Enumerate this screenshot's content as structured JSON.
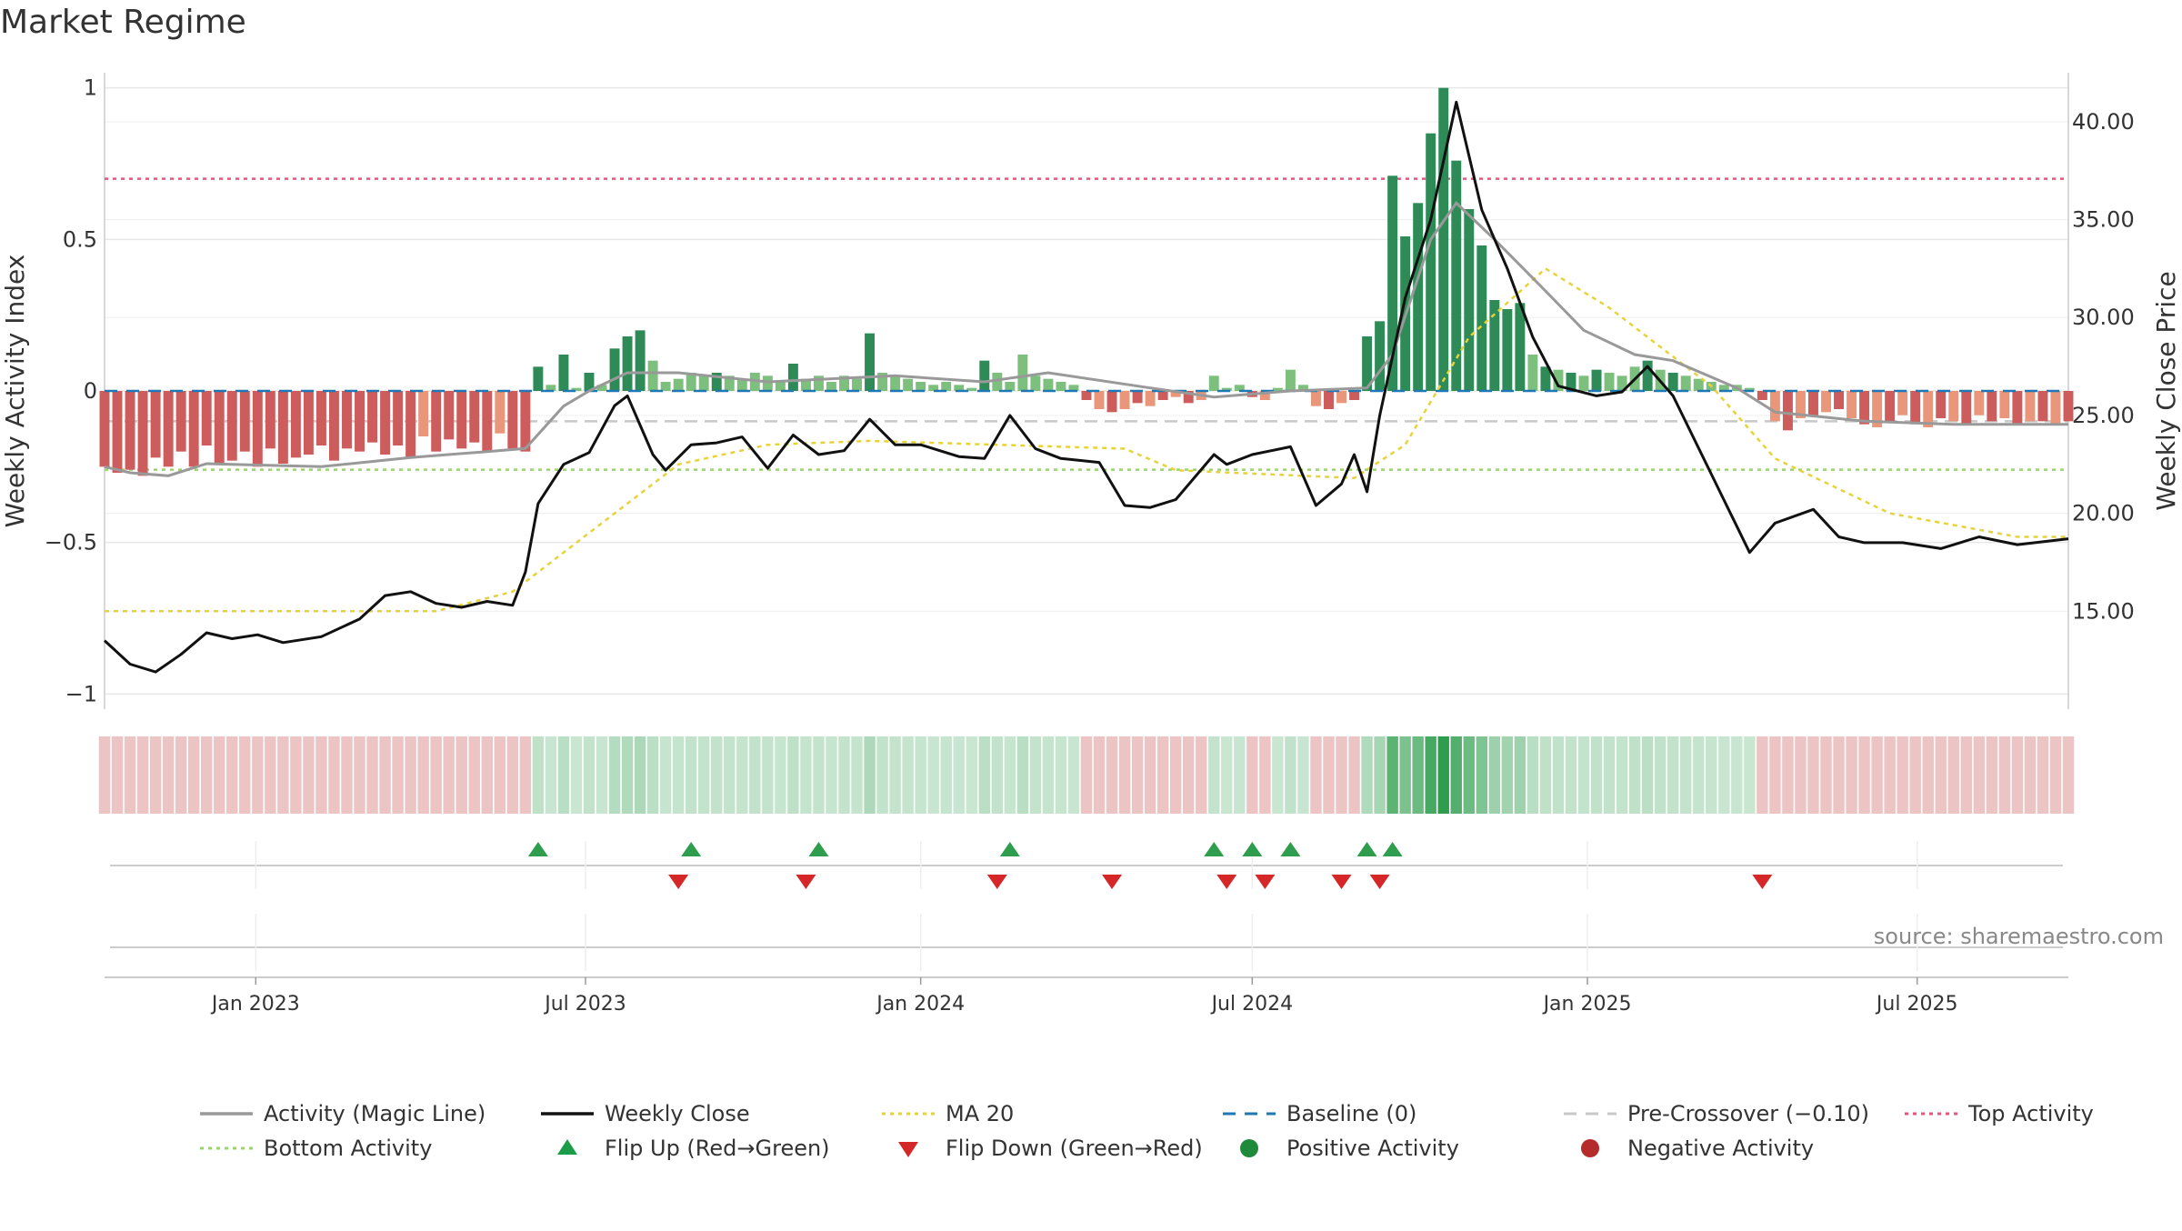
{
  "chart_data": {
    "type": "bar",
    "title": "Market Regime",
    "source": "source: sharemaestro.com",
    "y_left": {
      "label": "Weekly Activity Index",
      "range": [
        -1.05,
        1.05
      ],
      "ticks": [
        1,
        0.5,
        0,
        -0.5,
        -1
      ],
      "tick_labels": [
        "1",
        "0.5",
        "0",
        "−0.5",
        "−1"
      ]
    },
    "y_right": {
      "label": "Weekly Close Price",
      "range": [
        10.0,
        42.5
      ],
      "ticks": [
        40,
        35,
        30,
        25,
        20,
        15
      ],
      "tick_labels": [
        "40.00",
        "35.00",
        "30.00",
        "25.00",
        "20.00",
        "15.00"
      ]
    },
    "x_axis": {
      "start": "2022-10-10",
      "end": "2025-09-22",
      "ticks": [
        "2023-01-01",
        "2023-07-01",
        "2024-01-01",
        "2024-07-01",
        "2025-01-01",
        "2025-07-01"
      ],
      "tick_labels": [
        "Jan 2023",
        "Jul 2023",
        "Jan 2024",
        "Jul 2024",
        "Jan 2025",
        "Jul 2025"
      ]
    },
    "reference_lines": {
      "top_activity": 0.7,
      "bottom_activity": -0.26,
      "baseline": 0,
      "pre_crossover": -0.1
    },
    "weekly_close_anchors": [
      [
        "2022-10-10",
        13.5
      ],
      [
        "2022-10-24",
        12.3
      ],
      [
        "2022-11-07",
        11.9
      ],
      [
        "2022-11-21",
        12.8
      ],
      [
        "2022-12-05",
        13.9
      ],
      [
        "2022-12-19",
        13.6
      ],
      [
        "2023-01-02",
        13.8
      ],
      [
        "2023-01-16",
        13.4
      ],
      [
        "2023-02-06",
        13.7
      ],
      [
        "2023-02-27",
        14.6
      ],
      [
        "2023-03-13",
        15.8
      ],
      [
        "2023-03-27",
        16.0
      ],
      [
        "2023-04-10",
        15.4
      ],
      [
        "2023-04-24",
        15.2
      ],
      [
        "2023-05-08",
        15.5
      ],
      [
        "2023-05-22",
        15.3
      ],
      [
        "2023-05-29",
        17.0
      ],
      [
        "2023-06-05",
        20.5
      ],
      [
        "2023-06-19",
        22.5
      ],
      [
        "2023-07-03",
        23.1
      ],
      [
        "2023-07-17",
        25.5
      ],
      [
        "2023-07-24",
        26.0
      ],
      [
        "2023-08-07",
        23.0
      ],
      [
        "2023-08-14",
        22.2
      ],
      [
        "2023-08-28",
        23.5
      ],
      [
        "2023-09-11",
        23.6
      ],
      [
        "2023-09-25",
        23.9
      ],
      [
        "2023-10-09",
        22.3
      ],
      [
        "2023-10-23",
        24.0
      ],
      [
        "2023-11-06",
        23.0
      ],
      [
        "2023-11-20",
        23.2
      ],
      [
        "2023-12-04",
        24.8
      ],
      [
        "2023-12-18",
        23.5
      ],
      [
        "2024-01-01",
        23.5
      ],
      [
        "2024-01-22",
        22.9
      ],
      [
        "2024-02-05",
        22.8
      ],
      [
        "2024-02-19",
        25.0
      ],
      [
        "2024-03-04",
        23.3
      ],
      [
        "2024-03-18",
        22.8
      ],
      [
        "2024-04-08",
        22.6
      ],
      [
        "2024-04-22",
        20.4
      ],
      [
        "2024-05-06",
        20.3
      ],
      [
        "2024-05-20",
        20.7
      ],
      [
        "2024-06-10",
        23.0
      ],
      [
        "2024-06-17",
        22.5
      ],
      [
        "2024-07-01",
        23.0
      ],
      [
        "2024-07-22",
        23.4
      ],
      [
        "2024-08-05",
        20.4
      ],
      [
        "2024-08-19",
        21.5
      ],
      [
        "2024-08-26",
        23.0
      ],
      [
        "2024-09-02",
        21.1
      ],
      [
        "2024-09-09",
        25.0
      ],
      [
        "2024-09-23",
        31.0
      ],
      [
        "2024-10-07",
        35.0
      ],
      [
        "2024-10-21",
        41.0
      ],
      [
        "2024-11-04",
        35.5
      ],
      [
        "2024-11-18",
        32.5
      ],
      [
        "2024-12-02",
        29.0
      ],
      [
        "2024-12-16",
        26.5
      ],
      [
        "2025-01-06",
        26.0
      ],
      [
        "2025-01-20",
        26.2
      ],
      [
        "2025-02-03",
        27.5
      ],
      [
        "2025-02-17",
        26.0
      ],
      [
        "2025-03-10",
        22.0
      ],
      [
        "2025-03-31",
        18.0
      ],
      [
        "2025-04-14",
        19.5
      ],
      [
        "2025-05-05",
        20.2
      ],
      [
        "2025-05-19",
        18.8
      ],
      [
        "2025-06-02",
        18.5
      ],
      [
        "2025-06-23",
        18.5
      ],
      [
        "2025-07-14",
        18.2
      ],
      [
        "2025-08-04",
        18.8
      ],
      [
        "2025-08-25",
        18.4
      ],
      [
        "2025-09-22",
        18.7
      ]
    ],
    "activity_anchors": [
      [
        "2022-10-10",
        -0.25
      ],
      [
        "2022-10-24",
        -0.27
      ],
      [
        "2022-11-14",
        -0.28
      ],
      [
        "2022-12-05",
        -0.24
      ],
      [
        "2023-02-06",
        -0.25
      ],
      [
        "2023-03-27",
        -0.22
      ],
      [
        "2023-05-08",
        -0.2
      ],
      [
        "2023-05-29",
        -0.19
      ],
      [
        "2023-06-19",
        -0.05
      ],
      [
        "2023-07-03",
        0.0
      ],
      [
        "2023-07-24",
        0.06
      ],
      [
        "2023-08-21",
        0.06
      ],
      [
        "2023-10-09",
        0.03
      ],
      [
        "2023-12-18",
        0.05
      ],
      [
        "2024-02-05",
        0.03
      ],
      [
        "2024-03-11",
        0.06
      ],
      [
        "2024-05-06",
        0.01
      ],
      [
        "2024-06-10",
        -0.02
      ],
      [
        "2024-07-22",
        0.0
      ],
      [
        "2024-09-02",
        0.01
      ],
      [
        "2024-09-16",
        0.12
      ],
      [
        "2024-10-07",
        0.5
      ],
      [
        "2024-10-21",
        0.62
      ],
      [
        "2024-11-11",
        0.5
      ],
      [
        "2024-12-09",
        0.33
      ],
      [
        "2024-12-30",
        0.2
      ],
      [
        "2025-01-27",
        0.12
      ],
      [
        "2025-02-17",
        0.1
      ],
      [
        "2025-03-24",
        0.01
      ],
      [
        "2025-04-14",
        -0.07
      ],
      [
        "2025-06-02",
        -0.1
      ],
      [
        "2025-07-21",
        -0.11
      ],
      [
        "2025-09-22",
        -0.11
      ]
    ],
    "ma20_anchors": [
      [
        "2022-10-10",
        15.0
      ],
      [
        "2023-04-10",
        15.0
      ],
      [
        "2023-05-22",
        16.0
      ],
      [
        "2023-07-10",
        19.5
      ],
      [
        "2023-08-21",
        22.5
      ],
      [
        "2023-10-09",
        23.5
      ],
      [
        "2023-12-04",
        23.7
      ],
      [
        "2024-04-22",
        23.3
      ],
      [
        "2024-05-20",
        22.2
      ],
      [
        "2024-07-08",
        22.0
      ],
      [
        "2024-08-26",
        21.8
      ],
      [
        "2024-09-23",
        23.5
      ],
      [
        "2024-10-28",
        29.0
      ],
      [
        "2024-12-09",
        32.5
      ],
      [
        "2025-01-13",
        30.5
      ],
      [
        "2025-03-10",
        26.5
      ],
      [
        "2025-04-14",
        22.8
      ],
      [
        "2025-06-16",
        20.0
      ],
      [
        "2025-08-25",
        18.8
      ],
      [
        "2025-09-22",
        18.8
      ]
    ],
    "weekly_activity_bars": {
      "note": "weekly bars: value by week",
      "segments": [
        [
          "2022-10-10",
          "2023-05-29",
          "neg",
          [
            -0.25,
            -0.27,
            -0.26,
            -0.28,
            -0.22,
            -0.25,
            -0.2,
            -0.25,
            -0.18,
            -0.24,
            -0.23,
            -0.2,
            -0.25,
            -0.19,
            -0.24,
            -0.22,
            -0.21,
            -0.18,
            -0.23,
            -0.19,
            -0.2,
            -0.17,
            -0.21,
            -0.18,
            -0.22,
            -0.15,
            -0.2,
            -0.16,
            -0.19,
            -0.17,
            -0.2,
            -0.14,
            -0.19,
            -0.2
          ]
        ],
        [
          "2023-06-05",
          "2023-08-14",
          "pos",
          [
            0.08,
            0.02,
            0.12,
            0.01,
            0.06,
            0.02,
            0.14,
            0.18,
            0.2,
            0.1,
            0.03
          ]
        ],
        [
          "2023-08-21",
          "2023-09-04",
          "pos",
          [
            0.04,
            0.06,
            0.05
          ]
        ],
        [
          "2023-09-11",
          "2024-01-29",
          "pos",
          [
            0.06,
            0.05,
            0.04,
            0.06,
            0.05,
            0.03,
            0.09,
            0.04,
            0.05,
            0.03,
            0.05,
            0.04,
            0.19,
            0.06,
            0.05,
            0.04,
            0.03,
            0.02,
            0.03,
            0.02,
            0.01
          ]
        ],
        [
          "2024-02-05",
          "2024-03-25",
          "pos",
          [
            0.1,
            0.06,
            0.03,
            0.12,
            0.05,
            0.04,
            0.03,
            0.02
          ]
        ],
        [
          "2024-04-01",
          "2024-06-03",
          "neg",
          [
            -0.03,
            -0.06,
            -0.07,
            -0.06,
            -0.04,
            -0.05,
            -0.03,
            -0.02,
            -0.04,
            -0.03
          ]
        ],
        [
          "2024-06-10",
          "2024-06-24",
          "pos",
          [
            0.05,
            0.01,
            0.02
          ]
        ],
        [
          "2024-07-01",
          "2024-08-26",
          "neg",
          [
            -0.02,
            -0.03,
            0.01,
            0.07,
            0.02,
            -0.05,
            -0.06,
            -0.04,
            -0.03
          ]
        ],
        [
          "2024-09-02",
          "2025-03-31",
          "pos",
          [
            0.18,
            0.23,
            0.71,
            0.51,
            0.62,
            0.85,
            1.0,
            0.76,
            0.6,
            0.48,
            0.3,
            0.27,
            0.29,
            0.12,
            0.08,
            0.07,
            0.06,
            0.05,
            0.07,
            0.06,
            0.05,
            0.08,
            0.1,
            0.07,
            0.06,
            0.05,
            0.04,
            0.03,
            0.02,
            0.02,
            0.01
          ]
        ],
        [
          "2025-04-07",
          "2025-09-22",
          "neg",
          [
            -0.03,
            -0.1,
            -0.13,
            -0.09,
            -0.08,
            -0.07,
            -0.06,
            -0.09,
            -0.11,
            -0.12,
            -0.1,
            -0.08,
            -0.11,
            -0.12,
            -0.09,
            -0.1,
            -0.11,
            -0.08,
            -0.1,
            -0.09,
            -0.11,
            -0.1,
            -0.1,
            -0.11,
            -0.1
          ]
        ]
      ]
    },
    "flip_up_dates": [
      "2023-06-05",
      "2023-08-28",
      "2023-11-06",
      "2024-02-19",
      "2024-06-10",
      "2024-07-01",
      "2024-07-22",
      "2024-09-02",
      "2024-09-16"
    ],
    "flip_down_dates": [
      "2023-08-21",
      "2023-10-30",
      "2024-02-12",
      "2024-04-15",
      "2024-06-17",
      "2024-07-08",
      "2024-08-19",
      "2024-09-09",
      "2025-04-07"
    ],
    "legend": [
      {
        "label": "Activity (Magic Line)",
        "style": "line",
        "color": "#999999"
      },
      {
        "label": "Weekly Close",
        "style": "line",
        "color": "#111111"
      },
      {
        "label": "MA 20",
        "style": "dotted",
        "color": "#e6d33a"
      },
      {
        "label": "Baseline (0)",
        "style": "dashed",
        "color": "#1f77b4"
      },
      {
        "label": "Pre-Crossover (−0.10)",
        "style": "dashed",
        "color": "#c8c8c8"
      },
      {
        "label": "Top Activity",
        "style": "dotted",
        "color": "#e8557a"
      },
      {
        "label": "Bottom Activity",
        "style": "dotted",
        "color": "#9ad46a"
      },
      {
        "label": "Flip Up (Red→Green)",
        "style": "triangle-up",
        "color": "#1a9c4a"
      },
      {
        "label": "Flip Down (Green→Red)",
        "style": "triangle-down",
        "color": "#d62728"
      },
      {
        "label": "Positive Activity",
        "style": "dot",
        "color": "#1e8a3a"
      },
      {
        "label": "Negative Activity",
        "style": "dot",
        "color": "#b52a2a"
      }
    ],
    "colors": {
      "pos_strong": "#2e8b57",
      "pos_light": "#7dc07d",
      "neg_strong": "#cd5c5c",
      "neg_light": "#e9967a",
      "close": "#111111",
      "magic": "#999999",
      "ma20": "#e6d33a",
      "top": "#e8557a",
      "bottom": "#9ad46a",
      "baseline": "#1f77b4",
      "precross": "#c8c8c8",
      "heat_pos": "#2e9e4e",
      "heat_neg": "#d98a8a"
    }
  }
}
